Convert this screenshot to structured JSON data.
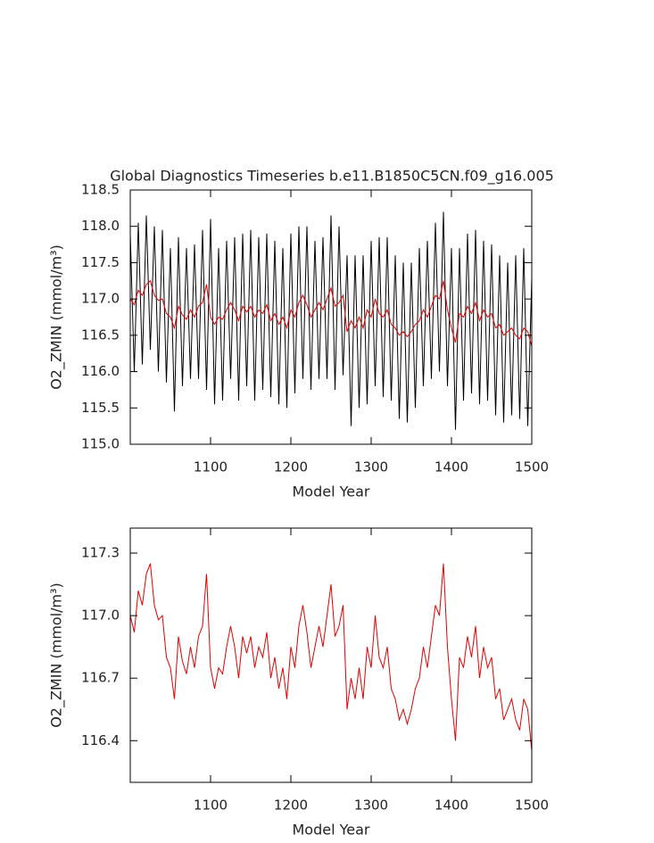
{
  "chart_data": [
    {
      "type": "line",
      "title": "Global Diagnostics Timeseries b.e11.B1850C5CN.f09_g16.005",
      "xlabel": "Model Year",
      "ylabel": "O2_ZMIN (mmol/m³)",
      "xlim": [
        1000,
        1500
      ],
      "xticks": [
        1100,
        1200,
        1300,
        1400,
        1500
      ],
      "ylim": [
        115,
        118.5
      ],
      "yticks": [
        {
          "value": 115,
          "label": "115.0"
        },
        {
          "value": 115.5,
          "label": "115.5"
        },
        {
          "value": 116,
          "label": "116.0"
        },
        {
          "value": 116.5,
          "label": "116.5"
        },
        {
          "value": 117,
          "label": "117.0"
        },
        {
          "value": 117.5,
          "label": "117.5"
        },
        {
          "value": 118,
          "label": "118.0"
        },
        {
          "value": 118.5,
          "label": "118.5"
        }
      ],
      "x": [
        1000,
        1005,
        1010,
        1015,
        1020,
        1025,
        1030,
        1035,
        1040,
        1045,
        1050,
        1055,
        1060,
        1065,
        1070,
        1075,
        1080,
        1085,
        1090,
        1095,
        1100,
        1105,
        1110,
        1115,
        1120,
        1125,
        1130,
        1135,
        1140,
        1145,
        1150,
        1155,
        1160,
        1165,
        1170,
        1175,
        1180,
        1185,
        1190,
        1195,
        1200,
        1205,
        1210,
        1215,
        1220,
        1225,
        1230,
        1235,
        1240,
        1245,
        1250,
        1255,
        1260,
        1265,
        1270,
        1275,
        1280,
        1285,
        1290,
        1295,
        1300,
        1305,
        1310,
        1315,
        1320,
        1325,
        1330,
        1335,
        1340,
        1345,
        1350,
        1355,
        1360,
        1365,
        1370,
        1375,
        1380,
        1385,
        1390,
        1395,
        1400,
        1405,
        1410,
        1415,
        1420,
        1425,
        1430,
        1435,
        1440,
        1445,
        1450,
        1455,
        1460,
        1465,
        1470,
        1475,
        1480,
        1485,
        1490,
        1495,
        1500
      ],
      "series": [
        {
          "color": "#000000",
          "values": [
            117.9,
            116.0,
            118.05,
            116.1,
            118.15,
            116.3,
            118.0,
            116.0,
            117.95,
            115.85,
            117.7,
            115.45,
            117.85,
            115.8,
            117.7,
            115.9,
            117.75,
            115.9,
            117.95,
            115.75,
            118.1,
            115.55,
            117.7,
            115.6,
            117.8,
            115.9,
            117.85,
            115.6,
            117.9,
            115.8,
            117.95,
            115.6,
            117.85,
            115.75,
            117.9,
            115.65,
            117.8,
            115.55,
            117.7,
            115.5,
            117.9,
            115.7,
            118.0,
            115.9,
            118.0,
            115.75,
            117.8,
            115.9,
            117.85,
            115.9,
            118.15,
            115.75,
            118.0,
            115.95,
            117.6,
            115.25,
            117.6,
            115.5,
            117.6,
            115.55,
            117.8,
            115.8,
            117.85,
            115.65,
            117.85,
            115.6,
            117.6,
            115.35,
            117.5,
            115.3,
            117.5,
            115.5,
            117.7,
            115.8,
            117.8,
            115.9,
            118.05,
            116.0,
            118.2,
            115.8,
            117.7,
            115.2,
            117.7,
            115.6,
            117.9,
            115.7,
            117.95,
            115.55,
            117.8,
            115.6,
            117.75,
            115.4,
            117.6,
            115.3,
            117.5,
            115.4,
            117.6,
            115.35,
            117.7,
            115.25,
            117.3
          ]
        },
        {
          "color": "#e00000",
          "values": [
            117.0,
            116.92,
            117.12,
            117.05,
            117.2,
            117.25,
            117.05,
            116.98,
            117.0,
            116.8,
            116.75,
            116.6,
            116.9,
            116.78,
            116.72,
            116.85,
            116.75,
            116.9,
            116.95,
            117.2,
            116.75,
            116.65,
            116.75,
            116.72,
            116.85,
            116.95,
            116.85,
            116.7,
            116.9,
            116.82,
            116.9,
            116.75,
            116.85,
            116.8,
            116.92,
            116.7,
            116.8,
            116.65,
            116.75,
            116.6,
            116.85,
            116.75,
            116.95,
            117.05,
            116.92,
            116.75,
            116.85,
            116.95,
            116.85,
            117.0,
            117.15,
            116.9,
            116.95,
            117.05,
            116.55,
            116.7,
            116.6,
            116.75,
            116.6,
            116.85,
            116.75,
            117.0,
            116.8,
            116.75,
            116.85,
            116.65,
            116.6,
            116.5,
            116.55,
            116.48,
            116.55,
            116.65,
            116.7,
            116.85,
            116.75,
            116.9,
            117.05,
            117.0,
            117.25,
            116.85,
            116.6,
            116.4,
            116.8,
            116.75,
            116.9,
            116.8,
            116.95,
            116.7,
            116.85,
            116.75,
            116.8,
            116.6,
            116.65,
            116.5,
            116.55,
            116.6,
            116.5,
            116.45,
            116.6,
            116.55,
            116.35
          ]
        }
      ]
    },
    {
      "type": "line",
      "xlabel": "Model Year",
      "ylabel": "O2_ZMIN (mmol/m³)",
      "xlim": [
        1000,
        1500
      ],
      "xticks": [
        1100,
        1200,
        1300,
        1400,
        1500
      ],
      "ylim": [
        116.2,
        117.42
      ],
      "yticks": [
        116.4,
        116.7,
        {
          "value": 117,
          "label": "117.0"
        },
        117.3
      ],
      "x": [
        1000,
        1005,
        1010,
        1015,
        1020,
        1025,
        1030,
        1035,
        1040,
        1045,
        1050,
        1055,
        1060,
        1065,
        1070,
        1075,
        1080,
        1085,
        1090,
        1095,
        1100,
        1105,
        1110,
        1115,
        1120,
        1125,
        1130,
        1135,
        1140,
        1145,
        1150,
        1155,
        1160,
        1165,
        1170,
        1175,
        1180,
        1185,
        1190,
        1195,
        1200,
        1205,
        1210,
        1215,
        1220,
        1225,
        1230,
        1235,
        1240,
        1245,
        1250,
        1255,
        1260,
        1265,
        1270,
        1275,
        1280,
        1285,
        1290,
        1295,
        1300,
        1305,
        1310,
        1315,
        1320,
        1325,
        1330,
        1335,
        1340,
        1345,
        1350,
        1355,
        1360,
        1365,
        1370,
        1375,
        1380,
        1385,
        1390,
        1395,
        1400,
        1405,
        1410,
        1415,
        1420,
        1425,
        1430,
        1435,
        1440,
        1445,
        1450,
        1455,
        1460,
        1465,
        1470,
        1475,
        1480,
        1485,
        1490,
        1495,
        1500
      ],
      "series": [
        {
          "color": "#e00000",
          "values": [
            117.0,
            116.92,
            117.12,
            117.05,
            117.2,
            117.25,
            117.05,
            116.98,
            117.0,
            116.8,
            116.75,
            116.6,
            116.9,
            116.78,
            116.72,
            116.85,
            116.75,
            116.9,
            116.95,
            117.2,
            116.75,
            116.65,
            116.75,
            116.72,
            116.85,
            116.95,
            116.85,
            116.7,
            116.9,
            116.82,
            116.9,
            116.75,
            116.85,
            116.8,
            116.92,
            116.7,
            116.8,
            116.65,
            116.75,
            116.6,
            116.85,
            116.75,
            116.95,
            117.05,
            116.92,
            116.75,
            116.85,
            116.95,
            116.85,
            117.0,
            117.15,
            116.9,
            116.95,
            117.05,
            116.55,
            116.7,
            116.6,
            116.75,
            116.6,
            116.85,
            116.75,
            117.0,
            116.8,
            116.75,
            116.85,
            116.65,
            116.6,
            116.5,
            116.55,
            116.48,
            116.55,
            116.65,
            116.7,
            116.85,
            116.75,
            116.9,
            117.05,
            117.0,
            117.25,
            116.85,
            116.6,
            116.4,
            116.8,
            116.75,
            116.9,
            116.8,
            116.95,
            116.7,
            116.85,
            116.75,
            116.8,
            116.6,
            116.65,
            116.5,
            116.55,
            116.6,
            116.5,
            116.45,
            116.6,
            116.55,
            116.35
          ]
        }
      ]
    }
  ]
}
